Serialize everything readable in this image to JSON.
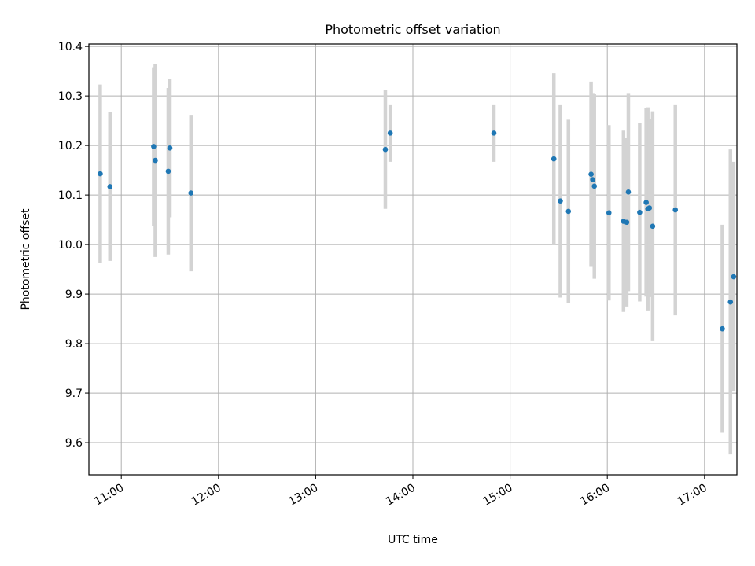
{
  "chart_data": {
    "type": "scatter",
    "title": "Photometric offset variation",
    "xlabel": "UTC time",
    "ylabel": "Photometric offset",
    "x_ticks": [
      "11:00",
      "12:00",
      "13:00",
      "14:00",
      "15:00",
      "16:00",
      "17:00"
    ],
    "y_ticks": [
      "9.6",
      "9.7",
      "9.8",
      "9.9",
      "10.0",
      "10.1",
      "10.2",
      "10.3",
      "10.4"
    ],
    "xlim": [
      "10:40",
      "17:20"
    ],
    "ylim": [
      9.535,
      10.405
    ],
    "grid": true,
    "legend": "none",
    "colors": {
      "points": "#1f77b4",
      "errorbars": "#d3d3d3",
      "grid": "#b0b0b0"
    },
    "points": [
      {
        "x": "10:47",
        "y": 10.143,
        "err": 0.18
      },
      {
        "x": "10:53",
        "y": 10.117,
        "err": 0.15
      },
      {
        "x": "11:20",
        "y": 10.198,
        "err": 0.16
      },
      {
        "x": "11:21",
        "y": 10.17,
        "err": 0.195
      },
      {
        "x": "11:29",
        "y": 10.148,
        "err": 0.168
      },
      {
        "x": "11:30",
        "y": 10.195,
        "err": 0.14
      },
      {
        "x": "11:43",
        "y": 10.104,
        "err": 0.158
      },
      {
        "x": "13:43",
        "y": 10.192,
        "err": 0.12
      },
      {
        "x": "13:46",
        "y": 10.225,
        "err": 0.058
      },
      {
        "x": "14:50",
        "y": 10.225,
        "err": 0.058
      },
      {
        "x": "15:27",
        "y": 10.173,
        "err": 0.173
      },
      {
        "x": "15:31",
        "y": 10.088,
        "err": 0.195
      },
      {
        "x": "15:36",
        "y": 10.067,
        "err": 0.185
      },
      {
        "x": "15:50",
        "y": 10.142,
        "err": 0.187
      },
      {
        "x": "15:51",
        "y": 10.131,
        "err": 0.175
      },
      {
        "x": "15:52",
        "y": 10.118,
        "err": 0.187
      },
      {
        "x": "16:01",
        "y": 10.064,
        "err": 0.177
      },
      {
        "x": "16:10",
        "y": 10.047,
        "err": 0.183
      },
      {
        "x": "16:12",
        "y": 10.045,
        "err": 0.17
      },
      {
        "x": "16:13",
        "y": 10.106,
        "err": 0.2
      },
      {
        "x": "16:20",
        "y": 10.065,
        "err": 0.18
      },
      {
        "x": "16:24",
        "y": 10.085,
        "err": 0.19
      },
      {
        "x": "16:25",
        "y": 10.072,
        "err": 0.205
      },
      {
        "x": "16:26",
        "y": 10.074,
        "err": 0.18
      },
      {
        "x": "16:28",
        "y": 10.037,
        "err": 0.232
      },
      {
        "x": "16:42",
        "y": 10.07,
        "err": 0.213
      },
      {
        "x": "17:11",
        "y": 9.83,
        "err": 0.21
      },
      {
        "x": "17:16",
        "y": 9.884,
        "err": 0.308
      },
      {
        "x": "17:18",
        "y": 9.935,
        "err": 0.232
      }
    ]
  }
}
